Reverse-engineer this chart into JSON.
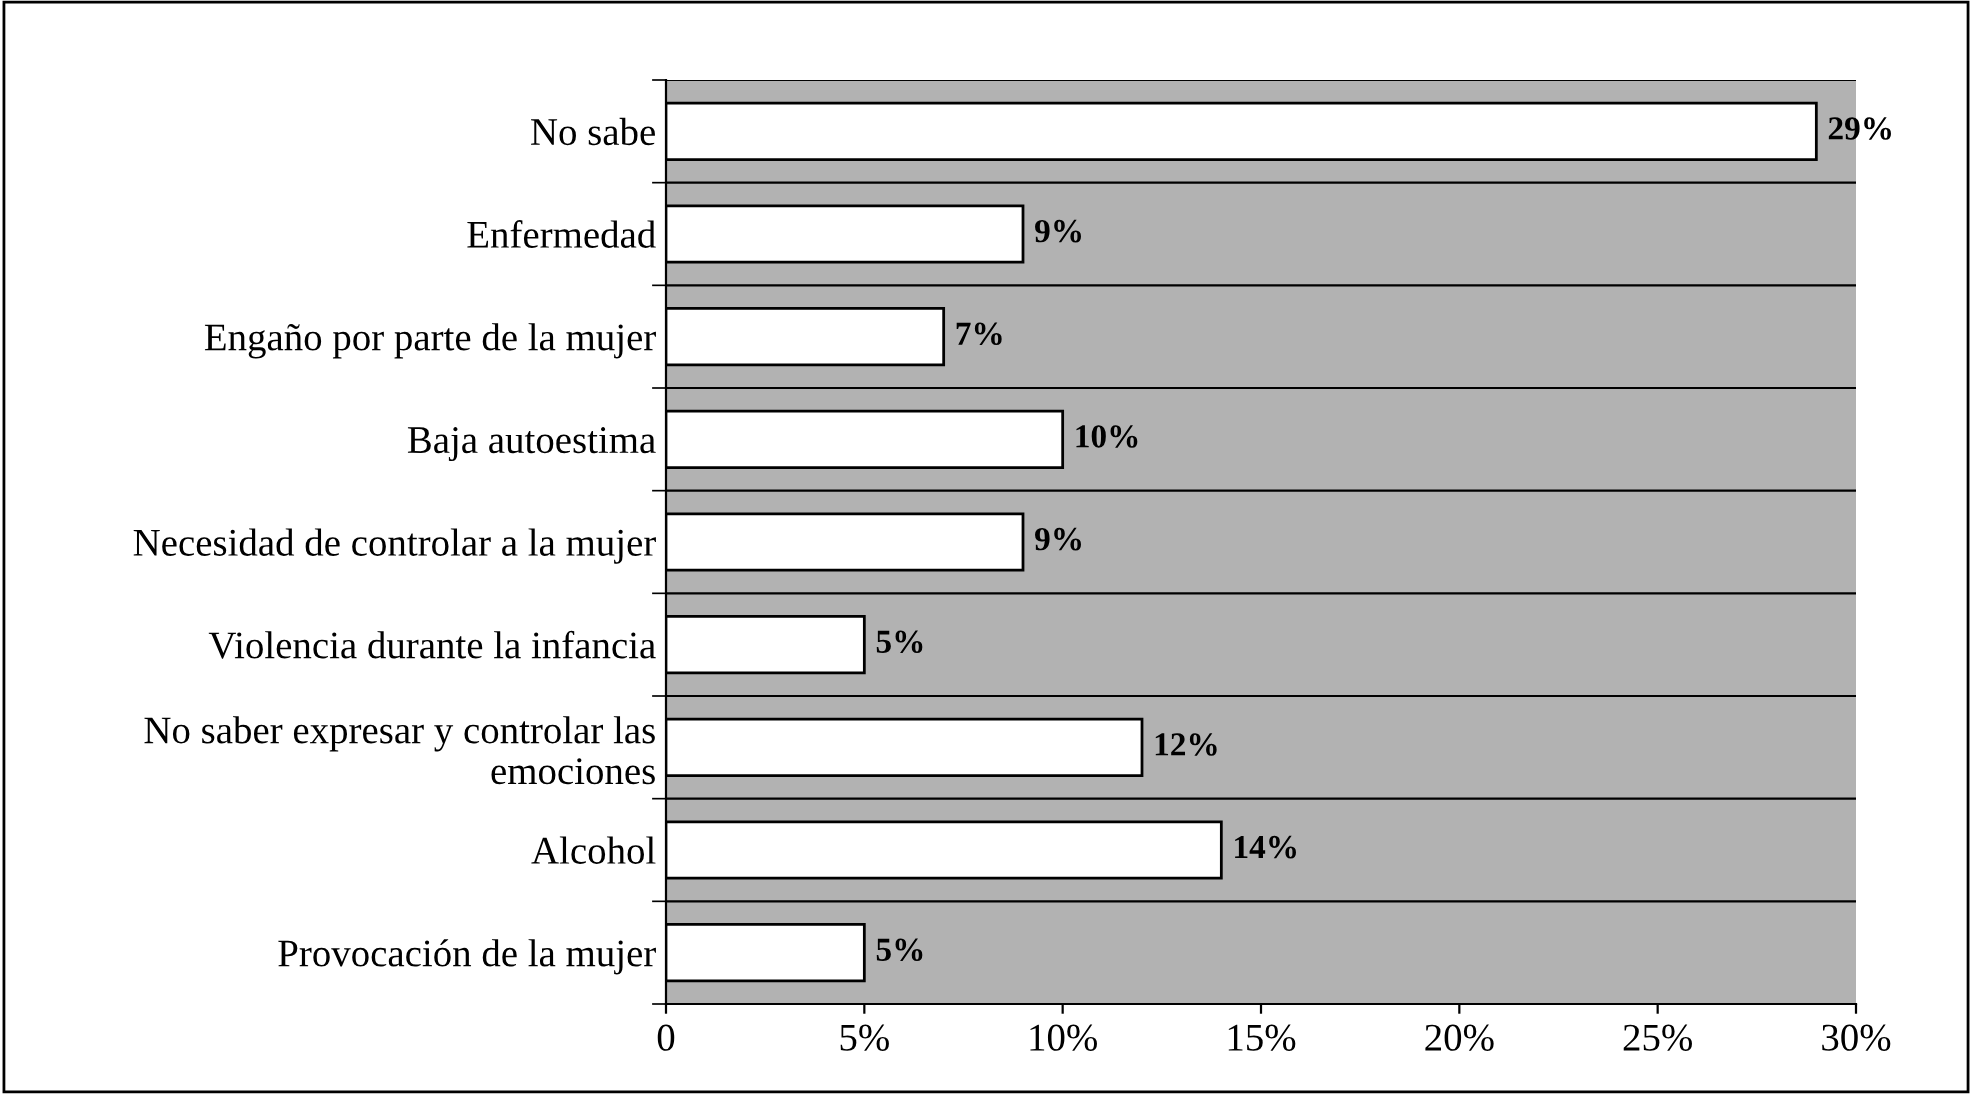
{
  "chart_data": {
    "type": "bar",
    "orientation": "horizontal",
    "categories": [
      "No sabe",
      "Enfermedad",
      "Engaño por parte de la mujer",
      "Baja autoestima",
      "Necesidad de controlar a la mujer",
      "Violencia durante la infancia",
      "No saber expresar y controlar las\nemociones",
      "Alcohol",
      "Provocación de la mujer"
    ],
    "values": [
      29,
      9,
      7,
      10,
      9,
      5,
      12,
      14,
      5
    ],
    "value_labels": [
      "29%",
      "9%",
      "7%",
      "10%",
      "9%",
      "5%",
      "12%",
      "14%",
      "5%"
    ],
    "color": "#ffffff",
    "xlim": [
      0,
      30
    ],
    "xticks": [
      0,
      {
        "value": 5,
        "label": "5%"
      },
      {
        "value": 10,
        "label": "10%"
      },
      {
        "value": 15,
        "label": "15%"
      },
      {
        "value": 20,
        "label": "20%"
      },
      {
        "value": 25,
        "label": "25%"
      },
      {
        "value": 30,
        "label": "30%"
      }
    ],
    "grid": "y"
  }
}
